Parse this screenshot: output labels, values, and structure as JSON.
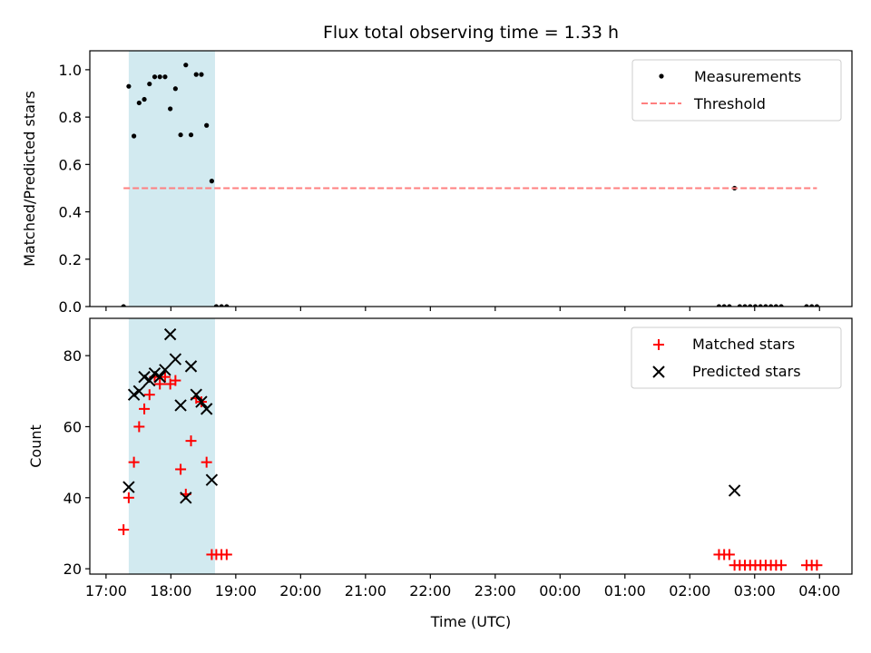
{
  "chart_data": [
    {
      "type": "scatter",
      "title": "Flux total observing time = 1.33 h",
      "xlabel": "",
      "ylabel": "Matched/Predicted stars",
      "xlim": [
        16.75,
        28.5
      ],
      "ylim": [
        0,
        1.08
      ],
      "yticks": [
        0.0,
        0.2,
        0.4,
        0.6,
        0.8,
        1.0
      ],
      "ytick_labels": [
        "0.0",
        "0.2",
        "0.4",
        "0.6",
        "0.8",
        "1.0"
      ],
      "shaded_span": [
        17.35,
        18.68
      ],
      "shaded_color": "#d2eaf0",
      "legend_position": "top-right",
      "series": [
        {
          "name": "Measurements",
          "marker": "dot",
          "color": "#000000",
          "x": [
            17.27,
            17.35,
            17.43,
            17.51,
            17.59,
            17.67,
            17.75,
            17.83,
            17.91,
            17.99,
            18.07,
            18.15,
            18.23,
            18.31,
            18.39,
            18.47,
            18.55,
            18.63,
            18.7,
            18.78,
            18.86,
            26.45,
            26.53,
            26.61,
            26.69,
            26.77,
            26.85,
            26.93,
            27.01,
            27.09,
            27.17,
            27.25,
            27.33,
            27.41,
            27.8,
            27.88,
            27.96
          ],
          "y": [
            0.0,
            0.93,
            0.72,
            0.86,
            0.875,
            0.94,
            0.97,
            0.97,
            0.97,
            0.835,
            0.92,
            0.725,
            1.02,
            0.725,
            0.98,
            0.98,
            0.765,
            0.53,
            0.0,
            0.0,
            0.0,
            0.0,
            0.0,
            0.0,
            0.5,
            0.0,
            0.0,
            0.0,
            0.0,
            0.0,
            0.0,
            0.0,
            0.0,
            0.0,
            0.0,
            0.0,
            0.0
          ]
        },
        {
          "name": "Threshold",
          "marker": "dashed-line",
          "color": "#ff7f7f",
          "x": [
            17.27,
            27.96
          ],
          "y": [
            0.5,
            0.5
          ]
        }
      ]
    },
    {
      "type": "scatter",
      "title": "",
      "xlabel": "Time (UTC)",
      "ylabel": "Count",
      "xlim": [
        16.75,
        28.5
      ],
      "ylim": [
        18.5,
        90.5
      ],
      "yticks": [
        20,
        40,
        60,
        80
      ],
      "ytick_labels": [
        "20",
        "40",
        "60",
        "80"
      ],
      "xticks": [
        17,
        18,
        19,
        20,
        21,
        22,
        23,
        24,
        25,
        26,
        27,
        28
      ],
      "xtick_labels": [
        "17:00",
        "18:00",
        "19:00",
        "20:00",
        "21:00",
        "22:00",
        "23:00",
        "00:00",
        "01:00",
        "02:00",
        "03:00",
        "04:00"
      ],
      "shaded_span": [
        17.35,
        18.68
      ],
      "shaded_color": "#d2eaf0",
      "legend_position": "top-right",
      "series": [
        {
          "name": "Matched stars",
          "marker": "plus",
          "color": "#ff0000",
          "x": [
            17.27,
            17.35,
            17.43,
            17.51,
            17.59,
            17.67,
            17.75,
            17.83,
            17.91,
            17.99,
            18.07,
            18.15,
            18.23,
            18.31,
            18.39,
            18.47,
            18.55,
            18.63,
            18.7,
            18.78,
            18.86,
            26.45,
            26.53,
            26.61,
            26.69,
            26.77,
            26.85,
            26.93,
            27.01,
            27.09,
            27.17,
            27.25,
            27.33,
            27.41,
            27.8,
            27.88,
            27.96
          ],
          "y": [
            31,
            40,
            50,
            60,
            65,
            69,
            74,
            72,
            74,
            72,
            73,
            48,
            41,
            56,
            68,
            67,
            50,
            24,
            24,
            24,
            24,
            24,
            24,
            24,
            21,
            21,
            21,
            21,
            21,
            21,
            21,
            21,
            21,
            21,
            21,
            21,
            21
          ]
        },
        {
          "name": "Predicted stars",
          "marker": "x",
          "color": "#000000",
          "x": [
            17.35,
            17.43,
            17.51,
            17.59,
            17.67,
            17.75,
            17.83,
            17.91,
            17.99,
            18.07,
            18.15,
            18.23,
            18.31,
            18.39,
            18.47,
            18.55,
            18.63,
            26.69
          ],
          "y": [
            43,
            69,
            70,
            74,
            73,
            75,
            74,
            76,
            86,
            79,
            66,
            40,
            77,
            69,
            67,
            65,
            45,
            42
          ]
        }
      ]
    }
  ]
}
